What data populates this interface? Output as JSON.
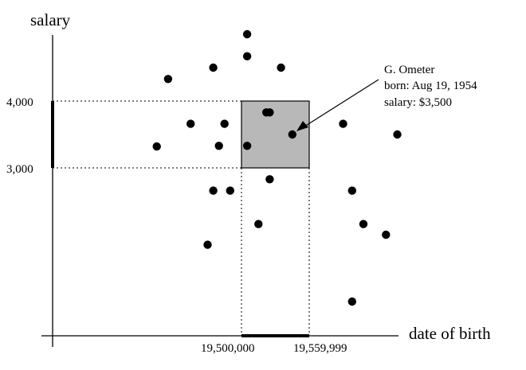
{
  "axes": {
    "y_title": "salary",
    "x_title": "date of birth"
  },
  "ticks": {
    "y_upper": "4,000",
    "y_lower": "3,000",
    "x_left": "19,500,000",
    "x_right": "19,559,999"
  },
  "annotation": {
    "name": "G. Ometer",
    "born": "born: Aug 19, 1954",
    "salary": "salary: $3,500"
  },
  "colors": {
    "ink": "#000000",
    "query_box_fill": "#b8b8b8"
  },
  "chart_data": {
    "type": "scatter",
    "xlabel": "date of birth",
    "ylabel": "salary",
    "query_range": {
      "x": [
        19500000,
        19559999
      ],
      "y": [
        3000,
        4000
      ]
    },
    "points": [
      {
        "x": 19425000,
        "y": 3320
      },
      {
        "x": 19435000,
        "y": 4330
      },
      {
        "x": 19455000,
        "y": 3660
      },
      {
        "x": 19475000,
        "y": 4500
      },
      {
        "x": 19475000,
        "y": 2660
      },
      {
        "x": 19485000,
        "y": 3660
      },
      {
        "x": 19505000,
        "y": 5000
      },
      {
        "x": 19505000,
        "y": 3330
      },
      {
        "x": 19525000,
        "y": 2830
      },
      {
        "x": 19525000,
        "y": 3830
      },
      {
        "x": 19535000,
        "y": 4500
      },
      {
        "x": 19545000,
        "y": 3500
      },
      {
        "x": 19470000,
        "y": 1850
      },
      {
        "x": 19480000,
        "y": 3330
      },
      {
        "x": 19490000,
        "y": 2660
      },
      {
        "x": 19505000,
        "y": 4670
      },
      {
        "x": 19515000,
        "y": 2160
      },
      {
        "x": 19522000,
        "y": 3830
      },
      {
        "x": 19590000,
        "y": 3660
      },
      {
        "x": 19598000,
        "y": 2660
      },
      {
        "x": 19608000,
        "y": 2160
      },
      {
        "x": 19598000,
        "y": 1000
      },
      {
        "x": 19628000,
        "y": 2000
      },
      {
        "x": 19638000,
        "y": 3500
      }
    ],
    "highlighted_point": {
      "x": 19545000,
      "y": 3500
    }
  }
}
